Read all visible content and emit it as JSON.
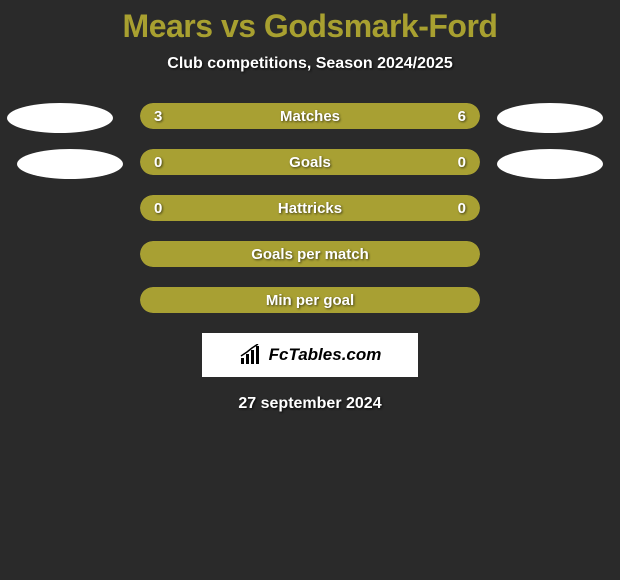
{
  "title": "Mears vs Godsmark-Ford",
  "subtitle": "Club competitions, Season 2024/2025",
  "title_color": "#a8a030",
  "background_color": "#2a2a2a",
  "bar_color": "#a8a033",
  "ellipse_color": "#ffffff",
  "stats": [
    {
      "label": "Matches",
      "left_value": "3",
      "right_value": "6",
      "left_pct": 33.3,
      "right_pct": 66.7,
      "has_values": true,
      "full_bar": true
    },
    {
      "label": "Goals",
      "left_value": "0",
      "right_value": "0",
      "left_pct": 50,
      "right_pct": 50,
      "has_values": true,
      "full_bar": true
    },
    {
      "label": "Hattricks",
      "left_value": "0",
      "right_value": "0",
      "left_pct": 50,
      "right_pct": 50,
      "has_values": true,
      "full_bar": true
    },
    {
      "label": "Goals per match",
      "left_value": "",
      "right_value": "",
      "left_pct": 0,
      "right_pct": 0,
      "has_values": false,
      "full_bar": true
    },
    {
      "label": "Min per goal",
      "left_value": "",
      "right_value": "",
      "left_pct": 0,
      "right_pct": 0,
      "has_values": false,
      "full_bar": true
    }
  ],
  "brand": "FcTables.com",
  "date": "27 september 2024"
}
